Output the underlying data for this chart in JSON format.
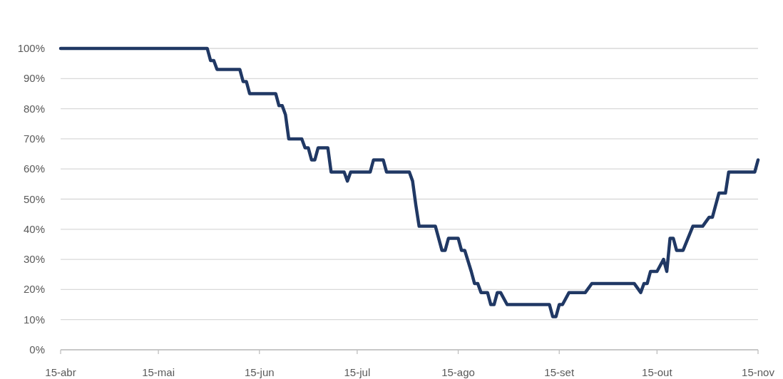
{
  "chart_data": {
    "type": "line",
    "grid": "y",
    "marker": "none",
    "line_style": "solid",
    "xlim": [
      "--04-15",
      "--11-15"
    ],
    "xticks": [
      {
        "value": "--04-15",
        "label": "15-abr"
      },
      {
        "value": "--05-15",
        "label": "15-mai"
      },
      {
        "value": "--06-15",
        "label": "15-jun"
      },
      {
        "value": "--07-15",
        "label": "15-jul"
      },
      {
        "value": "--08-15",
        "label": "15-ago"
      },
      {
        "value": "--09-15",
        "label": "15-set"
      },
      {
        "value": "--10-15",
        "label": "15-out"
      },
      {
        "value": "--11-15",
        "label": "15-nov"
      }
    ],
    "ylim": [
      0,
      100
    ],
    "yticks": [
      {
        "value": 0,
        "label": "0%"
      },
      {
        "value": 10,
        "label": "10%"
      },
      {
        "value": 20,
        "label": "20%"
      },
      {
        "value": 30,
        "label": "30%"
      },
      {
        "value": 40,
        "label": "40%"
      },
      {
        "value": 50,
        "label": "50%"
      },
      {
        "value": 60,
        "label": "60%"
      },
      {
        "value": 70,
        "label": "70%"
      },
      {
        "value": 80,
        "label": "80%"
      },
      {
        "value": 90,
        "label": "90%"
      },
      {
        "value": 100,
        "label": "100%"
      }
    ],
    "series": [
      {
        "color": "#203864",
        "x": [
          "--04-15",
          "--05-30",
          "--05-31",
          "--06-01",
          "--06-02",
          "--06-09",
          "--06-10",
          "--06-11",
          "--06-12",
          "--06-20",
          "--06-21",
          "--06-22",
          "--06-23",
          "--06-24",
          "--06-28",
          "--06-29",
          "--06-30",
          "--07-01",
          "--07-02",
          "--07-03",
          "--07-06",
          "--07-07",
          "--07-11",
          "--07-12",
          "--07-13",
          "--07-19",
          "--07-20",
          "--07-23",
          "--07-24",
          "--07-31",
          "--08-01",
          "--08-02",
          "--08-03",
          "--08-08",
          "--08-10",
          "--08-11",
          "--08-12",
          "--08-15",
          "--08-16",
          "--08-17",
          "--08-19",
          "--08-20",
          "--08-21",
          "--08-22",
          "--08-24",
          "--08-25",
          "--08-26",
          "--08-27",
          "--08-28",
          "--08-30",
          "--09-12",
          "--09-13",
          "--09-14",
          "--09-15",
          "--09-16",
          "--09-18",
          "--09-23",
          "--09-25",
          "--10-08",
          "--10-10",
          "--10-11",
          "--10-12",
          "--10-13",
          "--10-15",
          "--10-17",
          "--10-18",
          "--10-19",
          "--10-20",
          "--10-21",
          "--10-23",
          "--10-26",
          "--10-29",
          "--10-31",
          "--11-01",
          "--11-03",
          "--11-05",
          "--11-06",
          "--11-14",
          "--11-15"
        ],
        "values": [
          100,
          100,
          96,
          96,
          93,
          93,
          89,
          89,
          85,
          85,
          81,
          81,
          78,
          70,
          70,
          67,
          67,
          63,
          63,
          67,
          67,
          59,
          59,
          56,
          59,
          59,
          63,
          63,
          59,
          59,
          56,
          48,
          41,
          41,
          33,
          33,
          37,
          37,
          33,
          33,
          26,
          22,
          22,
          19,
          19,
          15,
          15,
          19,
          19,
          15,
          15,
          11,
          11,
          15,
          15,
          19,
          19,
          22,
          22,
          19,
          22,
          22,
          26,
          26,
          30,
          26,
          37,
          37,
          33,
          33,
          41,
          41,
          44,
          44,
          52,
          52,
          59,
          59,
          63
        ]
      }
    ]
  }
}
